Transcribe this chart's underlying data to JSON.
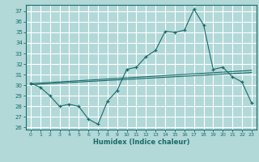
{
  "xlabel": "Humidex (Indice chaleur)",
  "background_color": "#b2d8d8",
  "grid_color": "#ffffff",
  "line_color": "#1a6b6b",
  "xlim": [
    -0.5,
    23.5
  ],
  "ylim": [
    25.8,
    37.6
  ],
  "yticks": [
    26,
    27,
    28,
    29,
    30,
    31,
    32,
    33,
    34,
    35,
    36,
    37
  ],
  "xticks": [
    0,
    1,
    2,
    3,
    4,
    5,
    6,
    7,
    8,
    9,
    10,
    11,
    12,
    13,
    14,
    15,
    16,
    17,
    18,
    19,
    20,
    21,
    22,
    23
  ],
  "curve1_x": [
    0,
    1,
    2,
    3,
    4,
    5,
    6,
    7,
    8,
    9,
    10,
    11,
    12,
    13,
    14,
    15,
    16,
    17,
    18,
    19,
    20,
    21,
    22,
    23
  ],
  "curve1_y": [
    30.2,
    29.8,
    29.0,
    28.0,
    28.2,
    28.0,
    26.8,
    26.3,
    28.5,
    29.5,
    31.5,
    31.7,
    32.7,
    33.3,
    35.1,
    35.0,
    35.2,
    37.2,
    35.7,
    31.5,
    31.7,
    30.8,
    30.3,
    28.3
  ],
  "trend1_x": [
    0,
    23
  ],
  "trend1_y": [
    30.05,
    31.2
  ],
  "trend2_x": [
    0,
    23
  ],
  "trend2_y": [
    30.15,
    31.4
  ],
  "marker": "+"
}
